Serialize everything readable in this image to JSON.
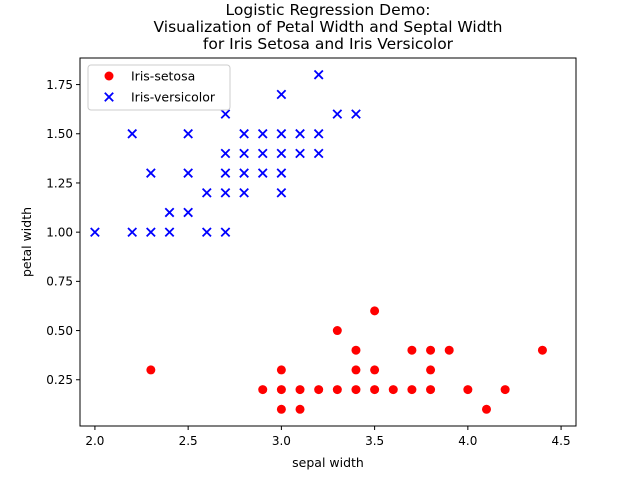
{
  "chart_data": {
    "type": "scatter",
    "title_lines": [
      "Logistic Regression Demo:",
      "Visualization of Petal Width and Septal Width",
      "for Iris Setosa and Iris Versicolor"
    ],
    "xlabel": "sepal width",
    "ylabel": "petal width",
    "xlim": [
      1.92,
      4.58
    ],
    "ylim": [
      0.015,
      1.885
    ],
    "xticks": [
      2.0,
      2.5,
      3.0,
      3.5,
      4.0,
      4.5
    ],
    "xtick_labels": [
      "2.0",
      "2.5",
      "3.0",
      "3.5",
      "4.0",
      "4.5"
    ],
    "yticks": [
      0.25,
      0.5,
      0.75,
      1.0,
      1.25,
      1.5,
      1.75
    ],
    "ytick_labels": [
      "0.25",
      "0.50",
      "0.75",
      "1.00",
      "1.25",
      "1.50",
      "1.75"
    ],
    "grid": false,
    "legend_position": "top-left",
    "series": [
      {
        "name": "Iris-setosa",
        "marker": "circle",
        "color": "#ff0000",
        "points": [
          [
            2.3,
            0.3
          ],
          [
            2.9,
            0.2
          ],
          [
            3.0,
            0.1
          ],
          [
            3.0,
            0.2
          ],
          [
            3.0,
            0.3
          ],
          [
            3.1,
            0.1
          ],
          [
            3.1,
            0.2
          ],
          [
            3.2,
            0.2
          ],
          [
            3.3,
            0.2
          ],
          [
            3.3,
            0.5
          ],
          [
            3.4,
            0.2
          ],
          [
            3.4,
            0.3
          ],
          [
            3.4,
            0.4
          ],
          [
            3.5,
            0.2
          ],
          [
            3.5,
            0.3
          ],
          [
            3.5,
            0.6
          ],
          [
            3.6,
            0.2
          ],
          [
            3.7,
            0.2
          ],
          [
            3.7,
            0.4
          ],
          [
            3.8,
            0.2
          ],
          [
            3.8,
            0.3
          ],
          [
            3.8,
            0.4
          ],
          [
            3.9,
            0.4
          ],
          [
            4.0,
            0.2
          ],
          [
            4.1,
            0.1
          ],
          [
            4.2,
            0.2
          ],
          [
            4.4,
            0.4
          ]
        ]
      },
      {
        "name": "Iris-versicolor",
        "marker": "x",
        "color": "#0000ff",
        "points": [
          [
            2.0,
            1.0
          ],
          [
            2.2,
            1.0
          ],
          [
            2.2,
            1.5
          ],
          [
            2.3,
            1.0
          ],
          [
            2.3,
            1.3
          ],
          [
            2.4,
            1.0
          ],
          [
            2.4,
            1.1
          ],
          [
            2.5,
            1.1
          ],
          [
            2.5,
            1.3
          ],
          [
            2.5,
            1.5
          ],
          [
            2.6,
            1.0
          ],
          [
            2.6,
            1.2
          ],
          [
            2.7,
            1.0
          ],
          [
            2.7,
            1.2
          ],
          [
            2.7,
            1.3
          ],
          [
            2.7,
            1.4
          ],
          [
            2.7,
            1.6
          ],
          [
            2.8,
            1.2
          ],
          [
            2.8,
            1.3
          ],
          [
            2.8,
            1.4
          ],
          [
            2.8,
            1.5
          ],
          [
            2.9,
            1.3
          ],
          [
            2.9,
            1.4
          ],
          [
            2.9,
            1.5
          ],
          [
            3.0,
            1.2
          ],
          [
            3.0,
            1.3
          ],
          [
            3.0,
            1.4
          ],
          [
            3.0,
            1.5
          ],
          [
            3.0,
            1.7
          ],
          [
            3.1,
            1.4
          ],
          [
            3.1,
            1.5
          ],
          [
            3.2,
            1.4
          ],
          [
            3.2,
            1.5
          ],
          [
            3.2,
            1.8
          ],
          [
            3.3,
            1.6
          ],
          [
            3.4,
            1.6
          ]
        ]
      }
    ]
  }
}
